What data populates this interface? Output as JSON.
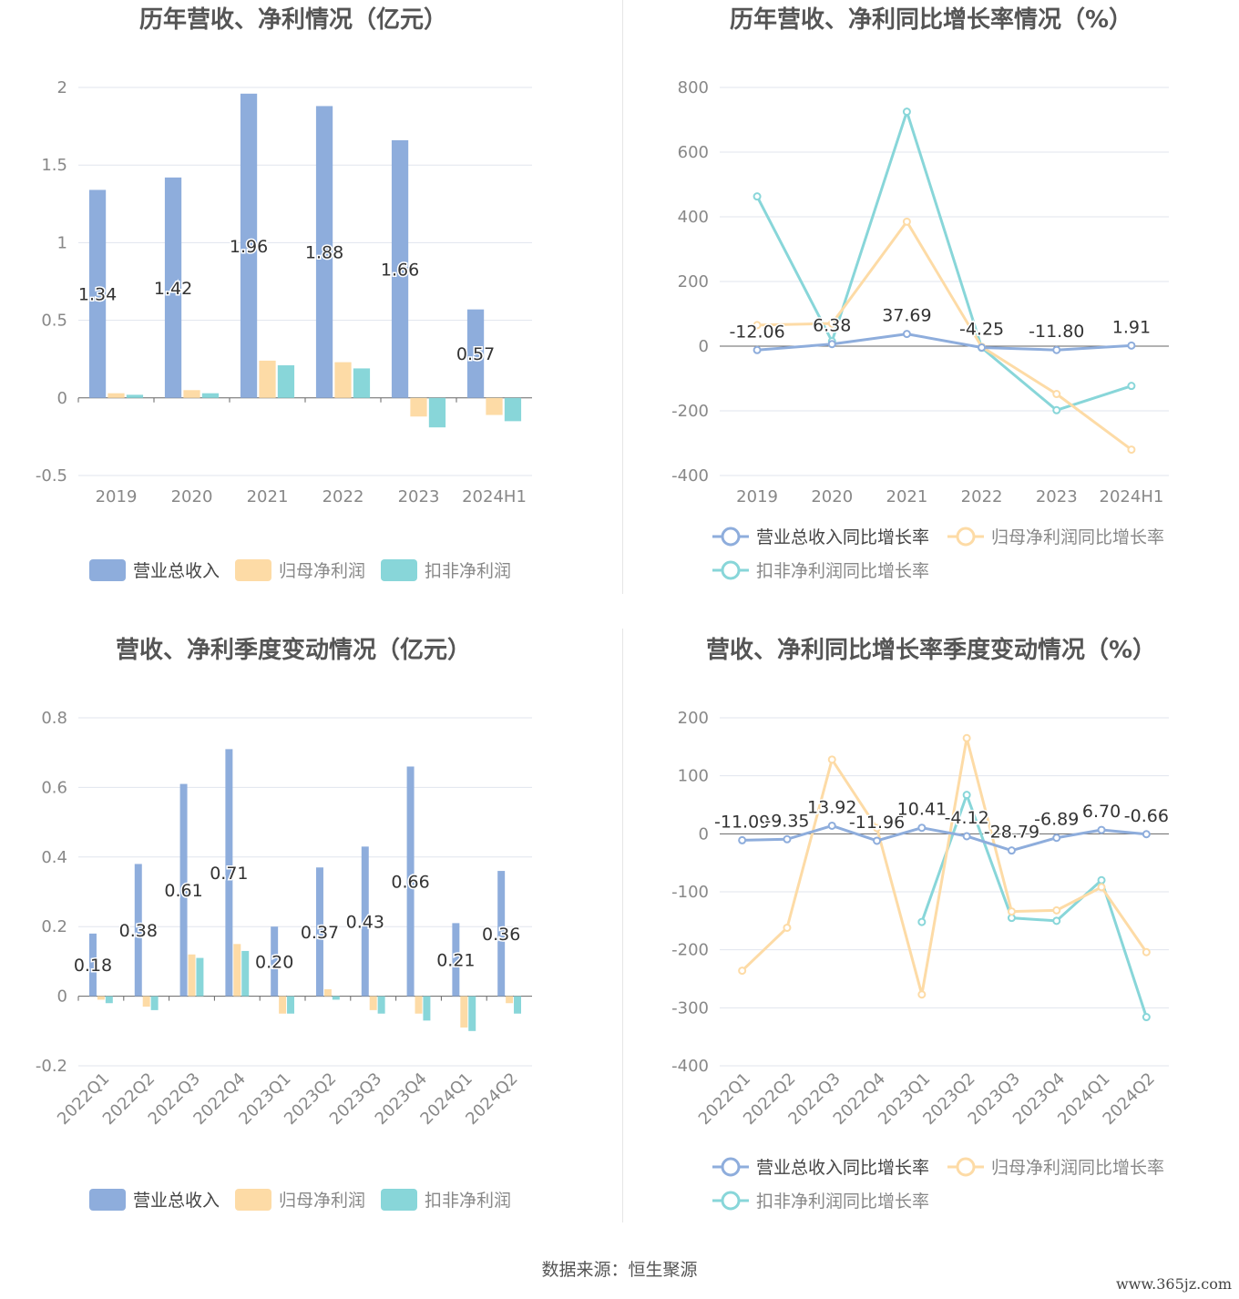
{
  "colors": {
    "revenue": "#8eaddc",
    "parent": "#fddba6",
    "deducted": "#88d6d9",
    "grid": "#e1e5ee",
    "text": "#888888",
    "title": "#555555"
  },
  "source": "数据来源：恒生聚源",
  "watermark": "www.365jz.com",
  "chart_data": [
    {
      "type": "bar",
      "title": "历年营收、净利情况（亿元）",
      "categories": [
        "2019",
        "2020",
        "2021",
        "2022",
        "2023",
        "2024H1"
      ],
      "ylim": [
        -0.5,
        2
      ],
      "yticks": [
        2,
        1.5,
        1,
        0.5,
        0,
        -0.5
      ],
      "ytick_labels": [
        "2",
        "1.5",
        "1",
        "0.5",
        "0",
        "-0.5"
      ],
      "series": [
        {
          "name": "营业总收入",
          "values": [
            1.34,
            1.42,
            1.96,
            1.88,
            1.66,
            0.57
          ],
          "labels": [
            "1.34",
            "1.42",
            "1.96",
            "1.88",
            "1.66",
            "0.57"
          ]
        },
        {
          "name": "归母净利润",
          "values": [
            0.03,
            0.05,
            0.24,
            0.23,
            -0.12,
            -0.11
          ]
        },
        {
          "name": "扣非净利润",
          "values": [
            0.02,
            0.03,
            0.21,
            0.19,
            -0.19,
            -0.15
          ]
        }
      ],
      "legend": "bottom"
    },
    {
      "type": "line",
      "title": "历年营收、净利同比增长率情况（%）",
      "categories": [
        "2019",
        "2020",
        "2021",
        "2022",
        "2023",
        "2024H1"
      ],
      "ylim": [
        -400,
        800
      ],
      "yticks": [
        800,
        600,
        400,
        200,
        0,
        -200,
        -400
      ],
      "ytick_labels": [
        "800",
        "600",
        "400",
        "200",
        "0",
        "-200",
        "-400"
      ],
      "series": [
        {
          "name": "营业总收入同比增长率",
          "values": [
            -12.06,
            6.38,
            37.69,
            -4.25,
            -11.8,
            1.91
          ],
          "labels": [
            "-12.06",
            "6.38",
            "37.69",
            "-4.25",
            "-11.80",
            "1.91"
          ]
        },
        {
          "name": "归母净利润同比增长率",
          "values": [
            65,
            70,
            385,
            -2,
            -148,
            -320
          ]
        },
        {
          "name": "扣非净利润同比增长率",
          "values": [
            463,
            15,
            725,
            -5,
            -198,
            -123
          ]
        }
      ],
      "legend": "bottom"
    },
    {
      "type": "bar",
      "title": "营收、净利季度变动情况（亿元）",
      "categories": [
        "2022Q1",
        "2022Q2",
        "2022Q3",
        "2022Q4",
        "2023Q1",
        "2023Q2",
        "2023Q3",
        "2023Q4",
        "2024Q1",
        "2024Q2"
      ],
      "ylim": [
        -0.2,
        0.8
      ],
      "yticks": [
        0.8,
        0.6,
        0.4,
        0.2,
        0,
        -0.2
      ],
      "ytick_labels": [
        "0.8",
        "0.6",
        "0.4",
        "0.2",
        "0",
        "-0.2"
      ],
      "series": [
        {
          "name": "营业总收入",
          "values": [
            0.18,
            0.38,
            0.61,
            0.71,
            0.2,
            0.37,
            0.43,
            0.66,
            0.21,
            0.36
          ],
          "labels": [
            "0.18",
            "0.38",
            "0.61",
            "0.71",
            "0.20",
            "0.37",
            "0.43",
            "0.66",
            "0.21",
            "0.36"
          ]
        },
        {
          "name": "归母净利润",
          "values": [
            -0.01,
            -0.03,
            0.12,
            0.15,
            -0.05,
            0.02,
            -0.04,
            -0.05,
            -0.09,
            -0.02
          ]
        },
        {
          "name": "扣非净利润",
          "values": [
            -0.02,
            -0.04,
            0.11,
            0.13,
            -0.05,
            -0.01,
            -0.05,
            -0.07,
            -0.1,
            -0.05
          ]
        }
      ],
      "legend": "bottom"
    },
    {
      "type": "line",
      "title": "营收、净利同比增长率季度变动情况（%）",
      "categories": [
        "2022Q1",
        "2022Q2",
        "2022Q3",
        "2022Q4",
        "2023Q1",
        "2023Q2",
        "2023Q3",
        "2023Q4",
        "2024Q1",
        "2024Q2"
      ],
      "ylim": [
        -400,
        200
      ],
      "yticks": [
        200,
        100,
        0,
        -100,
        -200,
        -300,
        -400
      ],
      "ytick_labels": [
        "200",
        "100",
        "0",
        "-100",
        "-200",
        "-300",
        "-400"
      ],
      "series": [
        {
          "name": "营业总收入同比增长率",
          "values": [
            -11.09,
            -9.35,
            13.92,
            -11.96,
            10.41,
            -4.12,
            -28.79,
            -6.89,
            6.7,
            -0.66
          ],
          "labels": [
            "-11.09",
            "-9.35",
            "13.92",
            "-11.96",
            "10.41",
            "-4.12",
            "-28.79",
            "-6.89",
            "6.70",
            "-0.66"
          ]
        },
        {
          "name": "归母净利润同比增长率",
          "values": [
            -236,
            -162,
            128,
            10,
            -277,
            165,
            -134,
            -132,
            -92,
            -204
          ]
        },
        {
          "name": "扣非净利润同比增长率",
          "values": [
            null,
            null,
            null,
            null,
            -152,
            67,
            -145,
            -150,
            -80,
            -316
          ]
        }
      ],
      "legend": "bottom"
    }
  ]
}
